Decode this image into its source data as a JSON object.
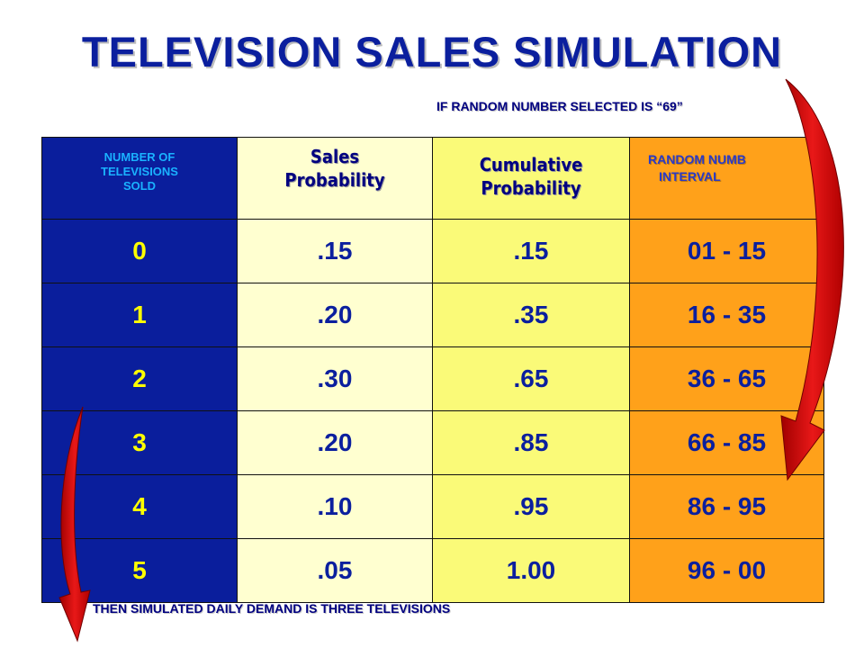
{
  "title": "TELEVISION SALES SIMULATION",
  "note_top": "IF RANDOM NUMBER SELECTED IS “69”",
  "note_bottom": "THEN SIMULATED DAILY DEMAND IS THREE TELEVISIONS",
  "headers": {
    "col0": [
      "NUMBER OF",
      "TELEVISIONS",
      "SOLD"
    ],
    "col1": [
      "Sales",
      "Probability"
    ],
    "col2": [
      "Cumulative",
      "Probability"
    ],
    "col3": [
      "RANDOM NUMB",
      "INTERVAL"
    ]
  },
  "rows": [
    {
      "sold": "0",
      "prob": ".15",
      "cum": ".15",
      "interval": "01 - 15"
    },
    {
      "sold": "1",
      "prob": ".20",
      "cum": ".35",
      "interval": "16 - 35"
    },
    {
      "sold": "2",
      "prob": ".30",
      "cum": ".65",
      "interval": "36 - 65"
    },
    {
      "sold": "3",
      "prob": ".20",
      "cum": ".85",
      "interval": "66 - 85"
    },
    {
      "sold": "4",
      "prob": ".10",
      "cum": ".95",
      "interval": "86 - 95"
    },
    {
      "sold": "5",
      "prob": ".05",
      "cum": "1.00",
      "interval": "96 - 00"
    }
  ],
  "colors": {
    "title": "#0b1f9e",
    "col0_bg": "#0a1e9c",
    "col1_bg": "#ffffd0",
    "col2_bg": "#fafa78",
    "col3_bg": "#ffa11a",
    "arrow": "#e01010"
  },
  "icons": [
    "curved-arrow-right",
    "curved-arrow-left"
  ]
}
